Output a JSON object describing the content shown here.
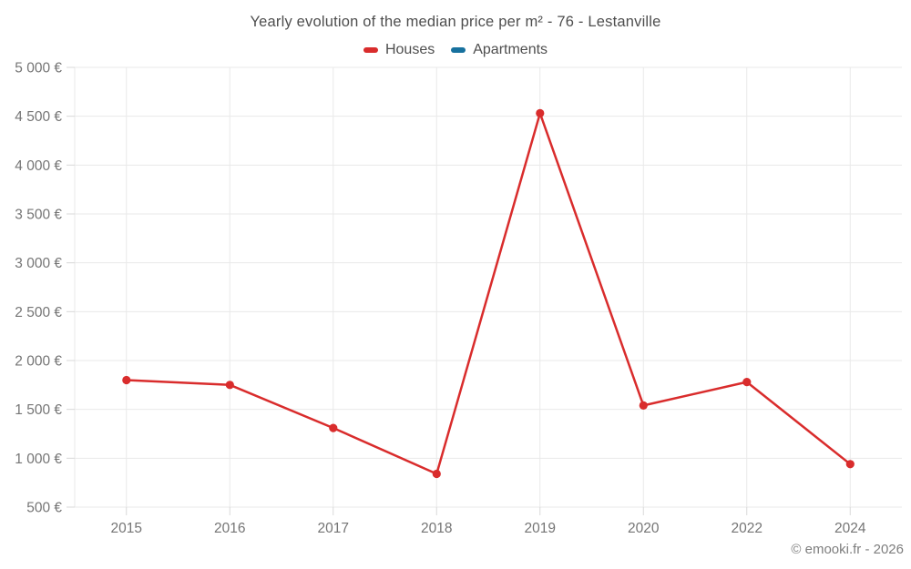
{
  "title": "Yearly evolution of the median price per m² - 76 - Lestanville",
  "legend": {
    "items": [
      {
        "id": "houses",
        "label": "Houses",
        "color": "#d92c2c"
      },
      {
        "id": "apartments",
        "label": "Apartments",
        "color": "#17719e"
      }
    ]
  },
  "attribution": "© emooki.fr - 2026",
  "colors": {
    "houses": "#d92c2c",
    "apartments": "#17719e",
    "grid": "#e9e9e9",
    "tick": "#d8d8d8",
    "axis_text": "#757575",
    "title_text": "#4e4e4e",
    "attribution_text": "#7e7e7e"
  },
  "chart_data": {
    "type": "line",
    "title": "Yearly evolution of the median price per m² - 76 - Lestanville",
    "categories": [
      "2015",
      "2016",
      "2017",
      "2018",
      "2019",
      "2020",
      "2022",
      "2024"
    ],
    "series": [
      {
        "name": "Houses",
        "color": "#d92c2c",
        "values": [
          1800,
          1750,
          1310,
          840,
          4530,
          1540,
          1780,
          940
        ]
      },
      {
        "name": "Apartments",
        "color": "#17719e",
        "values": []
      }
    ],
    "xlabel": "",
    "ylabel": "",
    "ylim": [
      500,
      5000
    ],
    "ytick_step": 500,
    "y_ticks": [
      "500 €",
      "1 000 €",
      "1 500 €",
      "2 000 €",
      "2 500 €",
      "3 000 €",
      "3 500 €",
      "4 000 €",
      "4 500 €",
      "5 000 €"
    ],
    "grid": true,
    "legend_position": "top",
    "marker": "circle"
  }
}
